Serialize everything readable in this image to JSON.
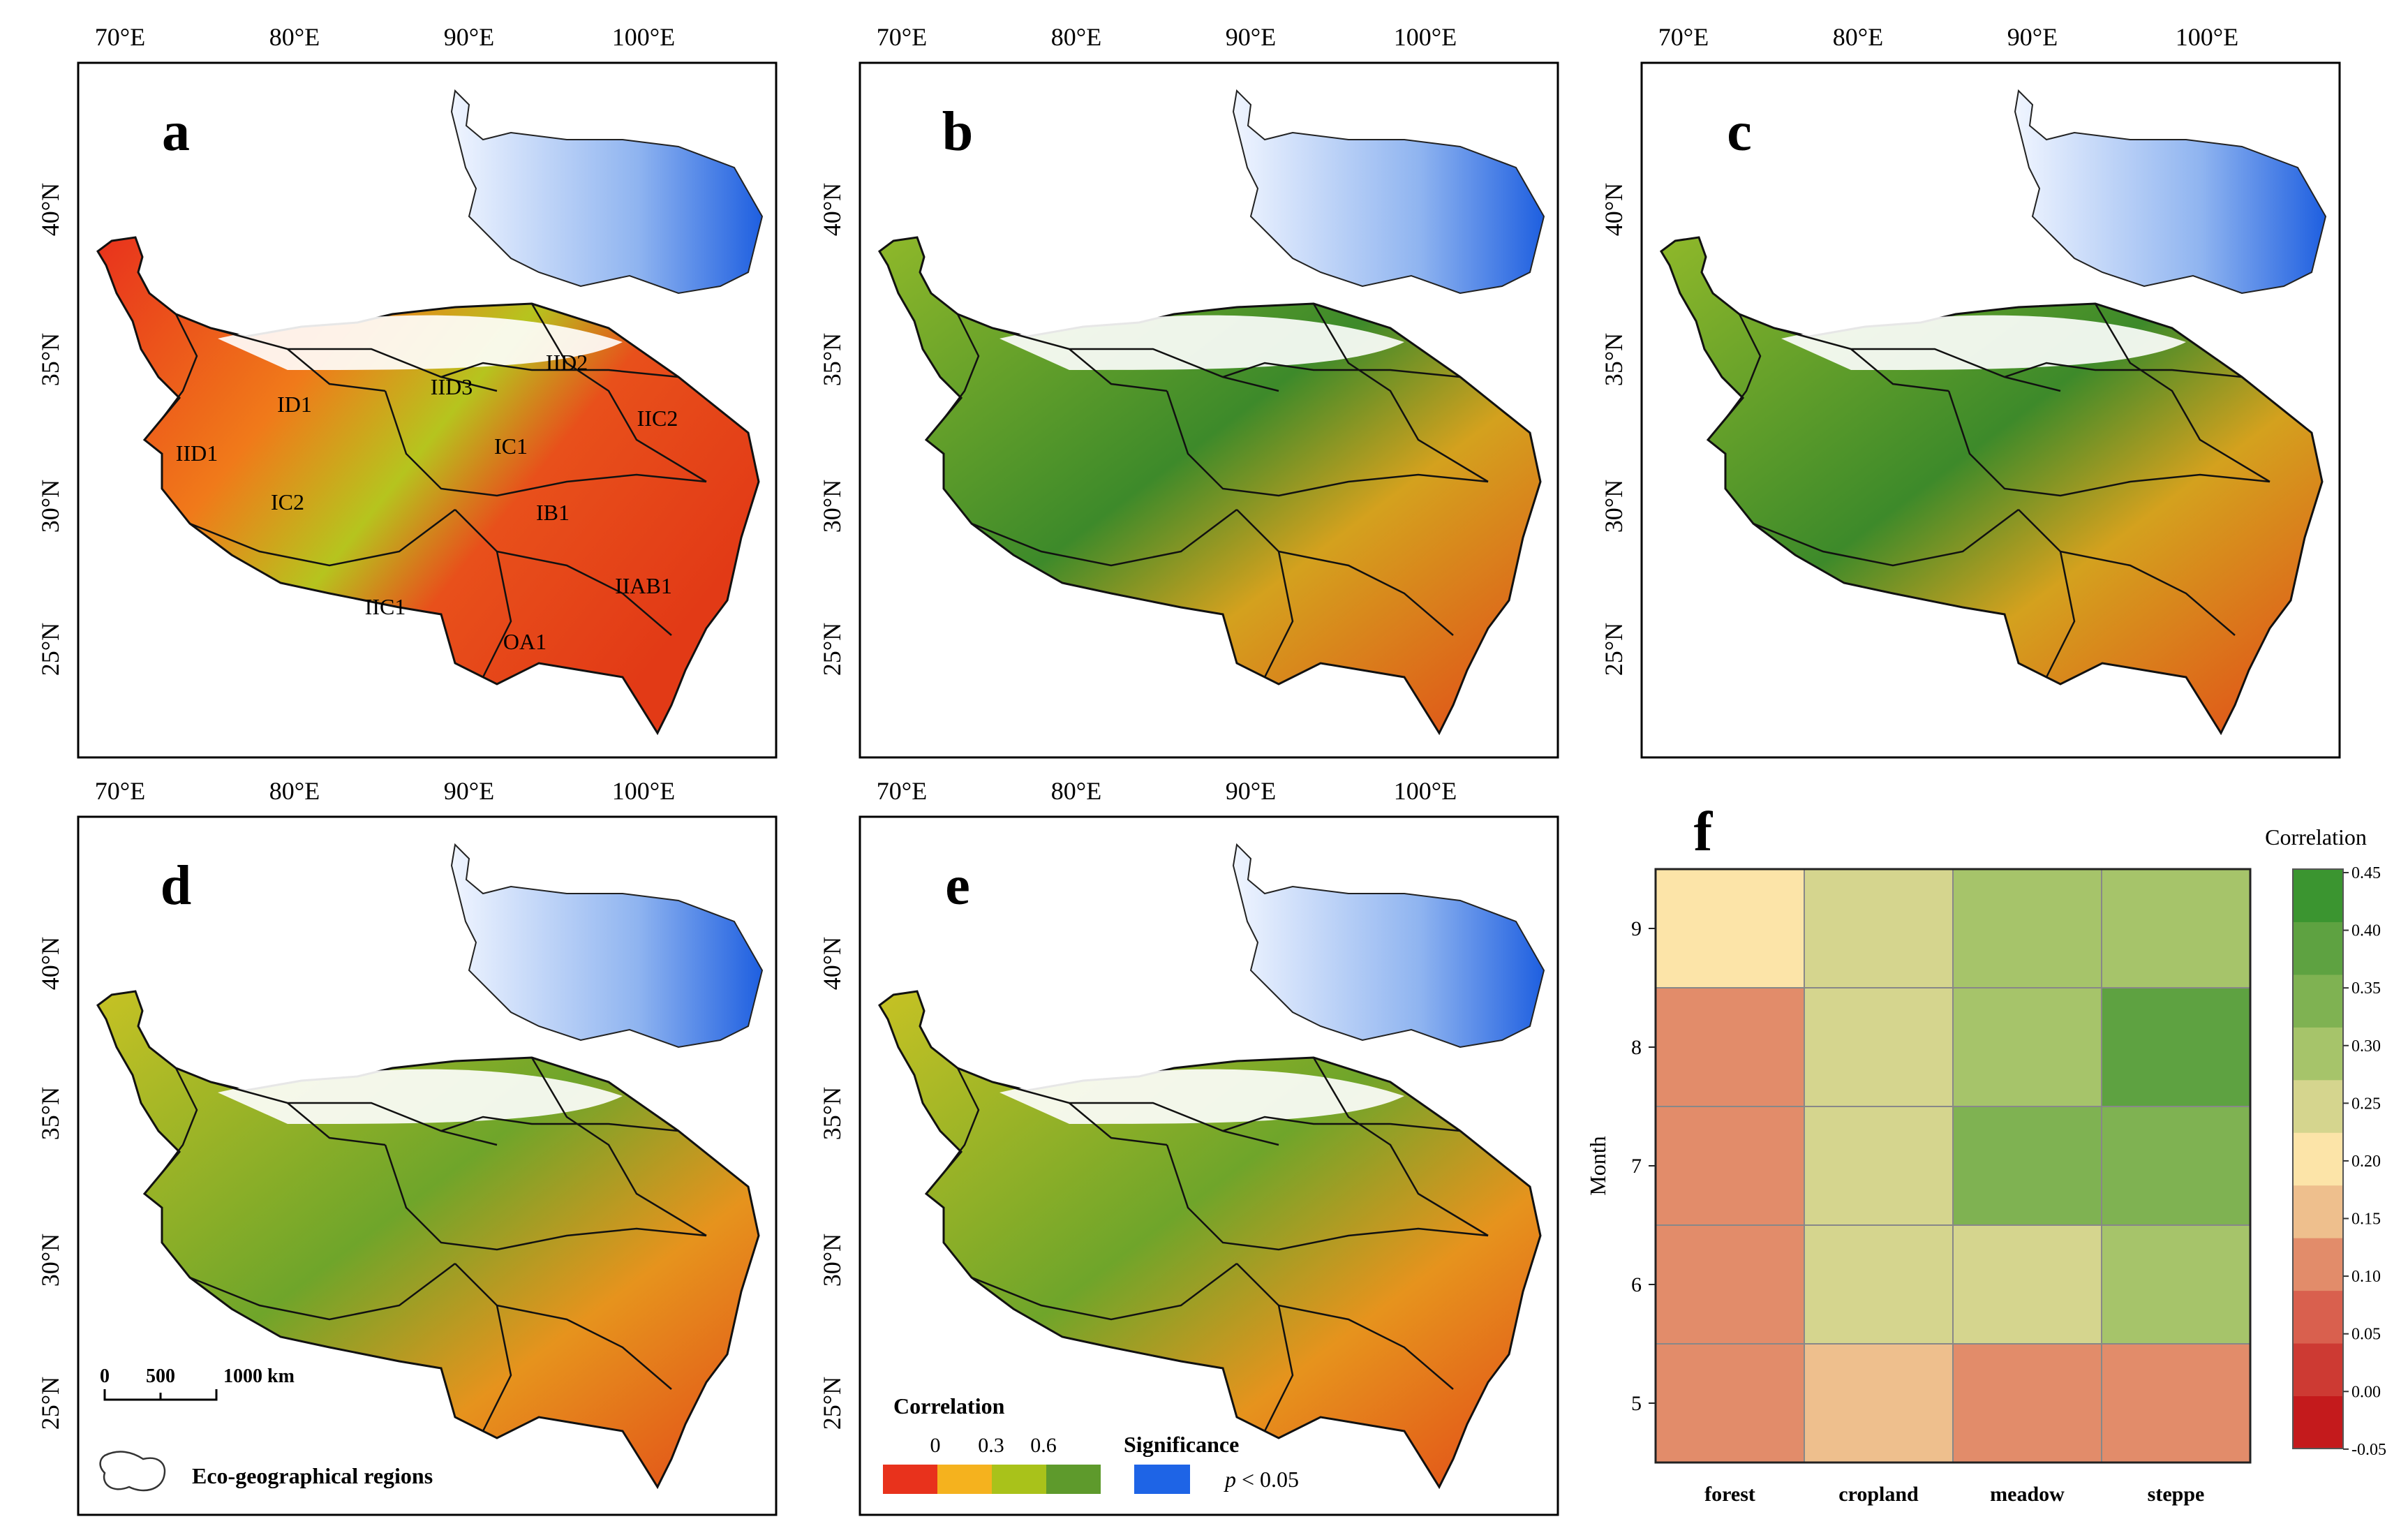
{
  "lon_labels": [
    "70°E",
    "80°E",
    "90°E",
    "100°E"
  ],
  "lat_labels": [
    "40°N",
    "35°N",
    "30°N",
    "25°N"
  ],
  "panels": [
    {
      "letter": "a"
    },
    {
      "letter": "b"
    },
    {
      "letter": "c"
    },
    {
      "letter": "d"
    },
    {
      "letter": "e"
    }
  ],
  "regions": [
    "IID2",
    "IID3",
    "ID1",
    "IIC2",
    "IID1",
    "IC1",
    "IC2",
    "IB1",
    "IIAB1",
    "IIC1",
    "OA1"
  ],
  "scale_bar": {
    "labels": [
      "0",
      "500",
      "1000 km"
    ]
  },
  "boundary_legend": "Eco-geographical regions",
  "correlation_legend": {
    "title": "Correlation",
    "ticks": [
      "0",
      "0.3",
      "0.6"
    ],
    "colors": [
      "#e8321c",
      "#f5b21e",
      "#a9c21a",
      "#5e9a2c"
    ]
  },
  "significance_legend": {
    "title": "Significance",
    "p_symbol": "p",
    "p_rest": " < 0.05",
    "color": "#1e64e6"
  },
  "chart_data": {
    "type": "heatmap",
    "title": "f",
    "xlabel": "",
    "ylabel": "Month",
    "x_categories": [
      "forest",
      "cropland",
      "meadow",
      "steppe"
    ],
    "y_categories": [
      "9",
      "8",
      "7",
      "6",
      "5"
    ],
    "values": [
      [
        0.22,
        0.28,
        0.33,
        0.33
      ],
      [
        0.13,
        0.28,
        0.33,
        0.43
      ],
      [
        0.13,
        0.28,
        0.37,
        0.37
      ],
      [
        0.13,
        0.28,
        0.28,
        0.33
      ],
      [
        0.13,
        0.18,
        0.13,
        0.13
      ]
    ],
    "colorbar": {
      "title": "Correlation",
      "ticks": [
        "0.45",
        "0.40",
        "0.35",
        "0.30",
        "0.25",
        "0.20",
        "0.15",
        "0.10",
        "0.05",
        "0.00",
        "-0.05"
      ],
      "colors": [
        "#c41a1c",
        "#cd3a33",
        "#d9604e",
        "#e28c6a",
        "#eebf8d",
        "#fce4a8",
        "#d5d58e",
        "#a6c46a",
        "#7fb252",
        "#5ea241",
        "#3b9530"
      ]
    }
  }
}
